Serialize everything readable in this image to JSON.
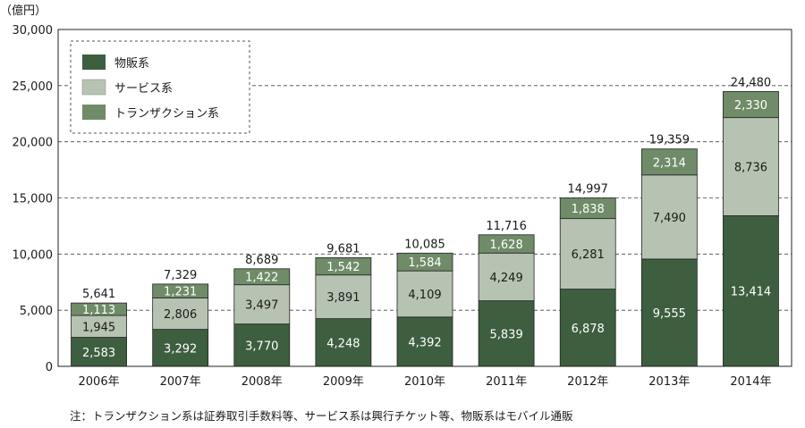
{
  "chart_data": {
    "type": "bar",
    "stacked": true,
    "unit_label": "（億円）",
    "categories": [
      "2006年",
      "2007年",
      "2008年",
      "2009年",
      "2010年",
      "2011年",
      "2012年",
      "2013年",
      "2014年"
    ],
    "series": [
      {
        "name": "物販系",
        "color": "#3d5e3f",
        "label_color": "#ffffff",
        "values": [
          2583,
          3292,
          3770,
          4248,
          4392,
          5839,
          6878,
          9555,
          13414
        ],
        "labels": [
          "2,583",
          "3,292",
          "3,770",
          "4,248",
          "4,392",
          "5,839",
          "6,878",
          "9,555",
          "13,414"
        ]
      },
      {
        "name": "サービス系",
        "color": "#b7c3b2",
        "label_color": "#1a1a1a",
        "values": [
          1945,
          2806,
          3497,
          3891,
          4109,
          4249,
          6281,
          7490,
          8736
        ],
        "labels": [
          "1,945",
          "2,806",
          "3,497",
          "3,891",
          "4,109",
          "4,249",
          "6,281",
          "7,490",
          "8,736"
        ]
      },
      {
        "name": "トランザクション系",
        "color": "#6f8b68",
        "label_color": "#ffffff",
        "values": [
          1113,
          1231,
          1422,
          1542,
          1584,
          1628,
          1838,
          2314,
          2330
        ],
        "labels": [
          "1,113",
          "1,231",
          "1,422",
          "1,542",
          "1,584",
          "1,628",
          "1,838",
          "2,314",
          "2,330"
        ]
      }
    ],
    "totals": [
      "5,641",
      "7,329",
      "8,689",
      "9,681",
      "10,085",
      "11,716",
      "14,997",
      "19,359",
      "24,480"
    ],
    "ylim": [
      0,
      30000
    ],
    "yticks": [
      0,
      5000,
      10000,
      15000,
      20000,
      25000,
      30000
    ],
    "ytick_labels": [
      "0",
      "5,000",
      "10,000",
      "15,000",
      "20,000",
      "25,000",
      "30,000"
    ],
    "grid": "dashed horizontal",
    "legend_position": "top-left",
    "note": "注：トランザクション系は証券取引手数料等、サービス系は興行チケット等、物販系はモバイル通販"
  }
}
